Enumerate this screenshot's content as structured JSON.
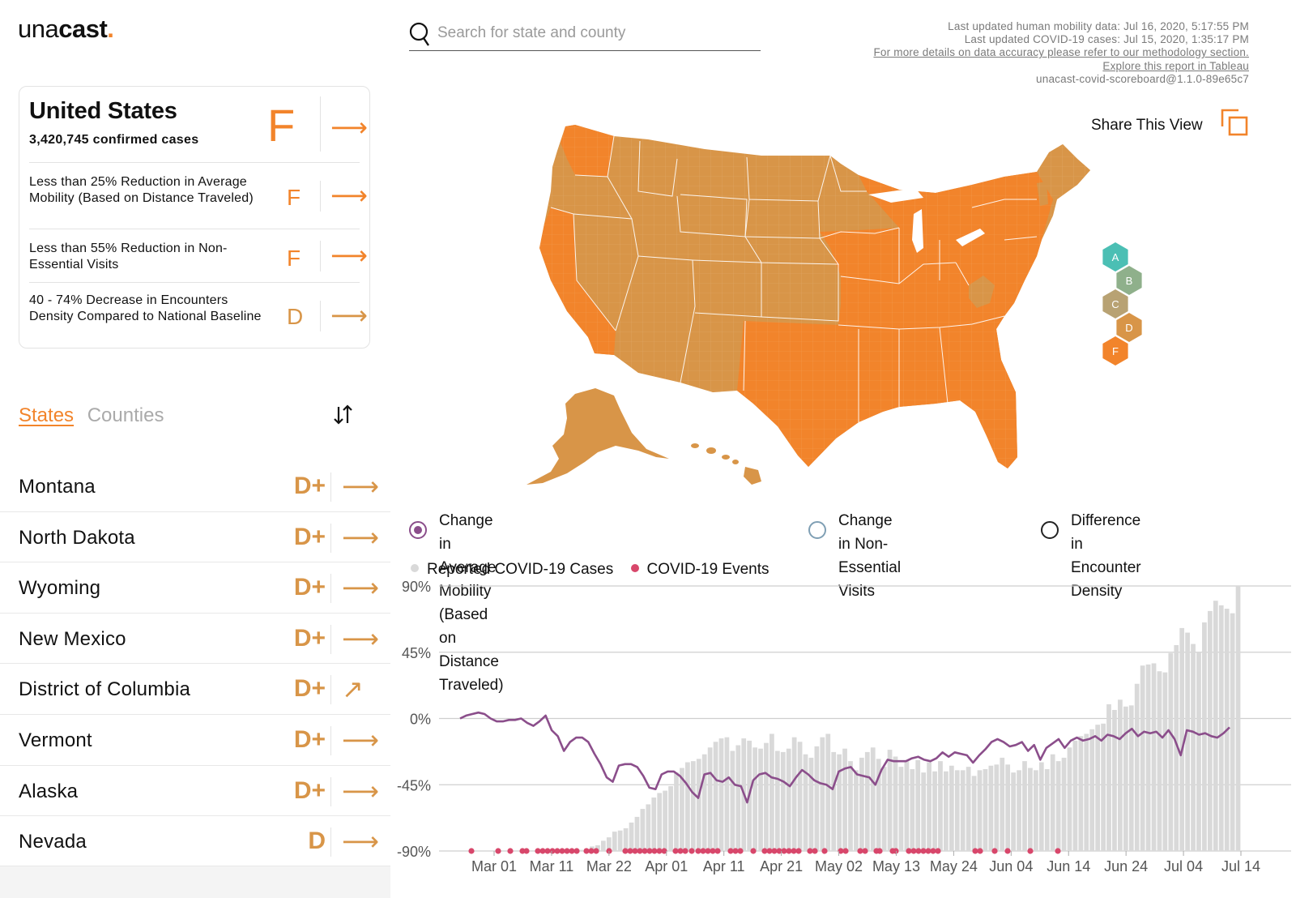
{
  "logo": {
    "thin": "una",
    "bold": "cast",
    "dot": "."
  },
  "us_card": {
    "title": "United States",
    "cases": "3,420,745 confirmed cases",
    "grade": "F",
    "metrics": [
      {
        "text": "Less than 25% Reduction in Average Mobility (Based on Distance Traveled)",
        "grade": "F"
      },
      {
        "text": "Less than 55% Reduction in Non-Essential Visits",
        "grade": "F"
      },
      {
        "text": "40 - 74% Decrease in Encounters Density Compared to National Baseline",
        "grade": "D"
      }
    ],
    "arrow": "⟶"
  },
  "tabs": {
    "states": "States",
    "counties": "Counties"
  },
  "states_list": [
    {
      "name": "Montana",
      "grade": "D+",
      "arrow": "⟶"
    },
    {
      "name": "North Dakota",
      "grade": "D+",
      "arrow": "⟶"
    },
    {
      "name": "Wyoming",
      "grade": "D+",
      "arrow": "⟶"
    },
    {
      "name": "New Mexico",
      "grade": "D+",
      "arrow": "⟶"
    },
    {
      "name": "District of Columbia",
      "grade": "D+",
      "arrow": "↗"
    },
    {
      "name": "Vermont",
      "grade": "D+",
      "arrow": "⟶"
    },
    {
      "name": "Alaska",
      "grade": "D+",
      "arrow": "⟶"
    },
    {
      "name": "Nevada",
      "grade": "D",
      "arrow": "⟶"
    }
  ],
  "search": {
    "placeholder": "Search for state and county"
  },
  "updates": {
    "mobility": "Last updated human mobility data: Jul 16, 2020, 5:17:55 PM",
    "cases": "Last updated COVID-19 cases: Jul 15, 2020, 1:35:17 PM",
    "methodology": "For more details on data accuracy please refer to our methodology section.",
    "tableau": "Explore this report in Tableau",
    "version": "unacast-covid-scoreboard@1.1.0-89e65c7"
  },
  "share": {
    "label": "Share This View"
  },
  "grade_legend": [
    {
      "grade": "A",
      "color": "#4bbfb4"
    },
    {
      "grade": "B",
      "color": "#8fb08b"
    },
    {
      "grade": "C",
      "color": "#b8a273"
    },
    {
      "grade": "D",
      "color": "#d89548"
    },
    {
      "grade": "F",
      "color": "#f2842b"
    }
  ],
  "metric_options": [
    {
      "label_line1": "Change in Average Mobility (Based on Distance",
      "label_line2": "Traveled)",
      "selected": true
    },
    {
      "label_line1": "Change in Non-Essential",
      "label_line2": "Visits",
      "selected": false
    },
    {
      "label_line1": "Difference in Encounter",
      "label_line2": "Density",
      "selected": false
    }
  ],
  "chart_legend": {
    "cases": "Reported COVID-19 Cases",
    "events": "COVID-19 Events"
  },
  "colors": {
    "orange": "#f2842b",
    "tan": "#d89548",
    "purple": "#8b4e8b",
    "event_red": "#d8476b",
    "bar_grey": "#d9d9d9"
  },
  "chart_data": {
    "type": "line",
    "ylim": [
      -90,
      90
    ],
    "y_ticks": [
      "90%",
      "45%",
      "0%",
      "-45%",
      "-90%"
    ],
    "x_ticks": [
      "Mar 01",
      "Mar 11",
      "Mar 22",
      "Apr 01",
      "Apr 11",
      "Apr 21",
      "May 02",
      "May 13",
      "May 24",
      "Jun 04",
      "Jun 14",
      "Jun 24",
      "Jul 04",
      "Jul 14"
    ],
    "mobility_series": [
      0,
      2,
      3,
      4,
      3,
      0,
      -2,
      -2,
      -1,
      -1,
      0,
      -3,
      -5,
      -2,
      2,
      -8,
      -12,
      -22,
      -16,
      -13,
      -13,
      -16,
      -24,
      -31,
      -40,
      -43,
      -32,
      -31,
      -31,
      -33,
      -39,
      -47,
      -48,
      -38,
      -36,
      -36,
      -39,
      -44,
      -50,
      -54,
      -38,
      -37,
      -42,
      -43,
      -40,
      -45,
      -46,
      -57,
      -42,
      -38,
      -37,
      -40,
      -41,
      -43,
      -46,
      -40,
      -35,
      -38,
      -42,
      -44,
      -45,
      -48,
      -36,
      -34,
      -33,
      -38,
      -39,
      -40,
      -45,
      -35,
      -28,
      -29,
      -29,
      -29,
      -27,
      -26,
      -28,
      -29,
      -27,
      -23,
      -26,
      -23,
      -24,
      -25,
      -30,
      -25,
      -21,
      -16,
      -14,
      -16,
      -19,
      -18,
      -16,
      -22,
      -18,
      -28,
      -20,
      -17,
      -14,
      -20,
      -15,
      -13,
      -15,
      -14,
      -12,
      -15,
      -11,
      -12,
      -14,
      -10,
      -7,
      -12,
      -9,
      -10,
      -9,
      -13,
      -8,
      -14,
      -25,
      -8,
      -9,
      -11,
      -10,
      -12,
      -13,
      -10,
      -6
    ],
    "cases_series_pct": [
      0,
      0,
      0,
      0,
      0,
      0,
      0,
      0,
      0,
      0,
      0,
      0,
      0,
      0,
      0,
      0,
      0,
      0,
      0,
      0,
      0,
      0,
      0,
      0,
      0,
      0,
      0,
      0,
      0,
      0,
      0,
      0,
      0,
      0,
      0,
      0,
      0,
      0,
      0,
      0,
      0,
      0,
      0,
      0,
      0,
      0,
      0,
      0,
      0,
      0,
      0,
      0,
      0,
      0,
      0,
      0,
      0,
      0,
      0,
      0,
      0,
      0,
      0,
      0,
      0,
      0,
      0,
      0,
      0,
      0,
      0,
      0,
      0,
      0,
      0,
      0,
      0,
      0,
      0,
      0,
      0,
      0,
      0,
      0,
      0,
      0,
      0,
      0,
      0,
      0,
      0,
      0,
      0,
      0,
      0,
      0,
      0,
      0,
      0,
      0,
      0,
      0,
      0,
      0,
      0,
      0,
      0,
      0,
      0,
      0,
      0,
      0,
      0,
      0,
      0,
      0,
      0,
      0,
      0,
      0,
      0,
      0,
      0,
      0,
      0,
      0,
      0,
      0,
      0,
      0,
      0,
      0,
      0,
      0,
      0,
      0,
      0,
      0,
      0,
      0,
      0
    ],
    "cases_relative": [
      0,
      0,
      0,
      0,
      0,
      0,
      0,
      0,
      0,
      0,
      0,
      0,
      0,
      0,
      0,
      0,
      0,
      0,
      0,
      0,
      0,
      1,
      2,
      4,
      5,
      9,
      12,
      17,
      18,
      20,
      25,
      30,
      37,
      41,
      47,
      51,
      53,
      57,
      69,
      73,
      78,
      79,
      81,
      85,
      91,
      96,
      99,
      100,
      88,
      93,
      99,
      97,
      91,
      90,
      95,
      103,
      88,
      87,
      90,
      100,
      96,
      85,
      82,
      92,
      100,
      103,
      87,
      85,
      90,
      79,
      71,
      82,
      87,
      91,
      81,
      74,
      89,
      83,
      74,
      79,
      72,
      80,
      69,
      78,
      70,
      79,
      70,
      75,
      71,
      71,
      74,
      66,
      71,
      72,
      75,
      76,
      82,
      76,
      69,
      71,
      79,
      73,
      71,
      78,
      72,
      85,
      79,
      82,
      91,
      97,
      101,
      103,
      107,
      111,
      112,
      129,
      124,
      133,
      127,
      128,
      147,
      163,
      164,
      165,
      158,
      157,
      174,
      181,
      196,
      192,
      182,
      175,
      201,
      211,
      220,
      216,
      213,
      209,
      233
    ]
  }
}
